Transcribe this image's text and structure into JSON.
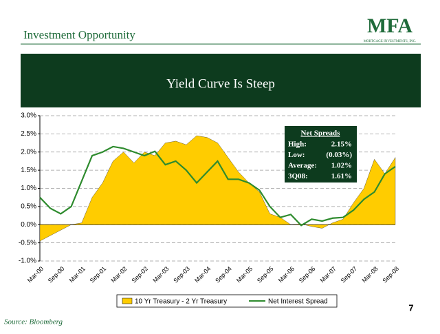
{
  "header": {
    "title": "Investment Opportunity",
    "logo": "MFA",
    "logo_sub": "MORTGAGE INVESTMENTS, INC."
  },
  "banner": {
    "title": "Yield Curve Is Steep"
  },
  "chart_data": {
    "type": "area-line",
    "categories": [
      "Mar-00",
      null,
      "Sep-00",
      null,
      "Mar-01",
      null,
      "Sep-01",
      null,
      "Mar-02",
      null,
      "Sep-02",
      null,
      "Mar-03",
      null,
      "Sep-03",
      null,
      "Mar-04",
      null,
      "Sep-04",
      null,
      "Mar-05",
      null,
      "Sep-05",
      null,
      "Mar-06",
      null,
      "Sep-06",
      null,
      "Mar-07",
      null,
      "Sep-07",
      null,
      "Mar-08",
      null,
      "Sep-08"
    ],
    "series": [
      {
        "name": "10 Yr Treasury - 2 Yr Treasury",
        "kind": "area",
        "color": "#ffcc00",
        "values": [
          -0.45,
          -0.3,
          -0.15,
          0.0,
          0.05,
          0.75,
          1.15,
          1.75,
          2.0,
          1.7,
          2.0,
          1.9,
          2.25,
          2.3,
          2.2,
          2.45,
          2.4,
          2.25,
          1.85,
          1.45,
          1.15,
          0.9,
          0.3,
          0.2,
          0.0,
          0.02,
          -0.05,
          -0.1,
          0.05,
          0.15,
          0.6,
          1.0,
          1.8,
          1.4,
          1.85
        ]
      },
      {
        "name": "Net Interest Spread",
        "kind": "line",
        "color": "#2e8b2e",
        "values": [
          0.75,
          0.45,
          0.3,
          0.5,
          1.2,
          1.9,
          2.0,
          2.15,
          2.1,
          2.0,
          1.9,
          2.02,
          1.65,
          1.75,
          1.5,
          1.15,
          1.45,
          1.75,
          1.25,
          1.25,
          1.15,
          0.95,
          0.5,
          0.2,
          0.28,
          -0.02,
          0.15,
          0.1,
          0.18,
          0.2,
          0.4,
          0.7,
          0.9,
          1.4,
          1.6
        ]
      }
    ],
    "ylim": [
      -1.0,
      3.0
    ],
    "yticks": [
      {
        "value": -1.0,
        "label": "-1.0%"
      },
      {
        "value": -0.5,
        "label": "-0.5%"
      },
      {
        "value": 0.0,
        "label": "0.0%"
      },
      {
        "value": 0.5,
        "label": "0.5%"
      },
      {
        "value": 1.0,
        "label": "1.0%"
      },
      {
        "value": 1.5,
        "label": "1.5%"
      },
      {
        "value": 2.0,
        "label": "2.0%"
      },
      {
        "value": 2.5,
        "label": "2.5%"
      },
      {
        "value": 3.0,
        "label": "3.0%"
      }
    ],
    "grid": true,
    "legend": "bottom",
    "annotation": {
      "title": "Net Spreads",
      "rows": [
        [
          "High:",
          "2.15%"
        ],
        [
          "Low:",
          "(0.03%)"
        ],
        [
          "Average:",
          "1.02%"
        ],
        [
          "3Q08:",
          "1.61%"
        ]
      ]
    }
  },
  "footer": {
    "page": "7",
    "source": "Source:  Bloomberg"
  }
}
